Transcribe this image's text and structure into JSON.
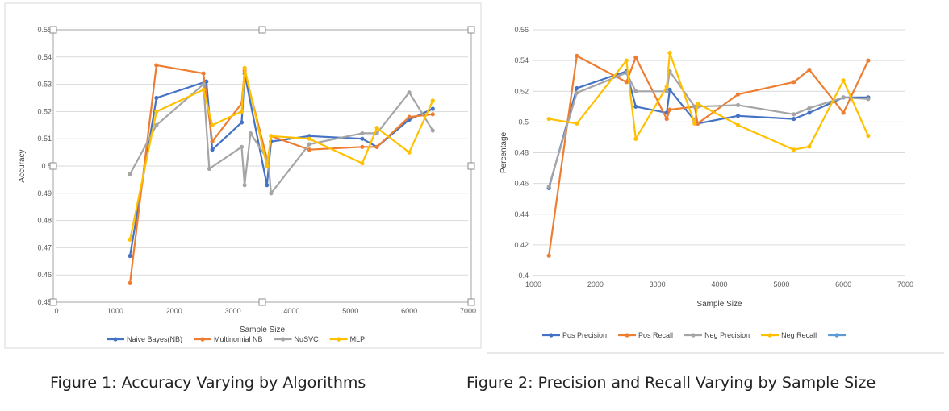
{
  "figure_captions": [
    "Figure 1: Accuracy Varying by Algorithms",
    "Figure 2: Precision and Recall Varying by Sample Size"
  ],
  "chart_data": [
    {
      "type": "line",
      "title": "",
      "xlabel": "Sample Size",
      "ylabel": "Accuracy",
      "xlim": [
        0,
        7000
      ],
      "ylim": [
        0.45,
        0.55
      ],
      "x_ticks": [
        0,
        1000,
        2000,
        3000,
        4000,
        5000,
        6000,
        7000
      ],
      "y_ticks": [
        0.45,
        0.46,
        0.47,
        0.48,
        0.49,
        0.5,
        0.51,
        0.52,
        0.53,
        0.54,
        0.55
      ],
      "y_tick_labels": [
        "0.45",
        "0.46",
        "0.47",
        "0.48",
        "0.49",
        "0.5",
        "0.51",
        "0.52",
        "0.53",
        "0.54",
        "0.55"
      ],
      "grid": "horizontal",
      "legend_position": "bottom",
      "series": [
        {
          "name": "Naive Bayes(NB)",
          "color": "#4472C4",
          "points": [
            [
              1250,
              0.467
            ],
            [
              1700,
              0.525
            ],
            [
              2550,
              0.531
            ],
            [
              2650,
              0.506
            ],
            [
              3150,
              0.516
            ],
            [
              3200,
              0.534
            ],
            [
              3580,
              0.493
            ],
            [
              3650,
              0.509
            ],
            [
              4300,
              0.511
            ],
            [
              5200,
              0.51
            ],
            [
              5450,
              0.507
            ],
            [
              6000,
              0.517
            ],
            [
              6400,
              0.521
            ]
          ]
        },
        {
          "name": "Multinomial NB",
          "color": "#ED7D31",
          "points": [
            [
              1250,
              0.457
            ],
            [
              1700,
              0.537
            ],
            [
              2500,
              0.534
            ],
            [
              2650,
              0.509
            ],
            [
              3150,
              0.523
            ],
            [
              3200,
              0.535
            ],
            [
              3600,
              0.501
            ],
            [
              3650,
              0.511
            ],
            [
              4300,
              0.506
            ],
            [
              5200,
              0.507
            ],
            [
              5450,
              0.507
            ],
            [
              6000,
              0.518
            ],
            [
              6400,
              0.519
            ]
          ]
        },
        {
          "name": "NuSVC",
          "color": "#A5A5A5",
          "points": [
            [
              1250,
              0.497
            ],
            [
              1700,
              0.515
            ],
            [
              2500,
              0.53
            ],
            [
              2600,
              0.499
            ],
            [
              3150,
              0.507
            ],
            [
              3200,
              0.493
            ],
            [
              3300,
              0.512
            ],
            [
              3600,
              0.502
            ],
            [
              3650,
              0.49
            ],
            [
              4300,
              0.508
            ],
            [
              5200,
              0.512
            ],
            [
              5450,
              0.512
            ],
            [
              6000,
              0.527
            ],
            [
              6400,
              0.513
            ]
          ]
        },
        {
          "name": "MLP",
          "color": "#FFC000",
          "points": [
            [
              1250,
              0.473
            ],
            [
              1700,
              0.52
            ],
            [
              2500,
              0.528
            ],
            [
              2650,
              0.515
            ],
            [
              3150,
              0.52
            ],
            [
              3200,
              0.536
            ],
            [
              3580,
              0.5
            ],
            [
              3650,
              0.511
            ],
            [
              4300,
              0.51
            ],
            [
              5200,
              0.501
            ],
            [
              5450,
              0.514
            ],
            [
              6000,
              0.505
            ],
            [
              6400,
              0.524
            ]
          ]
        }
      ]
    },
    {
      "type": "line",
      "title": "",
      "xlabel": "Sample Size",
      "ylabel": "Percentage",
      "xlim": [
        1000,
        7000
      ],
      "ylim": [
        0.4,
        0.56
      ],
      "x_ticks": [
        1000,
        2000,
        3000,
        4000,
        5000,
        6000,
        7000
      ],
      "y_ticks": [
        0.4,
        0.42,
        0.44,
        0.46,
        0.48,
        0.5,
        0.52,
        0.54,
        0.56
      ],
      "y_tick_labels": [
        "0.4",
        "0.42",
        "0.44",
        "0.46",
        "0.48",
        "0.5",
        "0.52",
        "0.54",
        "0.56"
      ],
      "grid": "horizontal",
      "legend_position": "bottom",
      "series": [
        {
          "name": "Pos Precision",
          "color": "#4472C4",
          "points": [
            [
              1250,
              0.457
            ],
            [
              1700,
              0.522
            ],
            [
              2500,
              0.533
            ],
            [
              2650,
              0.51
            ],
            [
              3150,
              0.506
            ],
            [
              3200,
              0.521
            ],
            [
              3600,
              0.501
            ],
            [
              3650,
              0.499
            ],
            [
              4300,
              0.504
            ],
            [
              5200,
              0.502
            ],
            [
              5450,
              0.506
            ],
            [
              6000,
              0.516
            ],
            [
              6400,
              0.516
            ]
          ]
        },
        {
          "name": "Pos Recall",
          "color": "#ED7D31",
          "points": [
            [
              1250,
              0.413
            ],
            [
              1700,
              0.543
            ],
            [
              2500,
              0.526
            ],
            [
              2650,
              0.542
            ],
            [
              3150,
              0.502
            ],
            [
              3200,
              0.508
            ],
            [
              3600,
              0.51
            ],
            [
              3650,
              0.499
            ],
            [
              4300,
              0.518
            ],
            [
              5200,
              0.526
            ],
            [
              5450,
              0.534
            ],
            [
              6000,
              0.506
            ],
            [
              6400,
              0.54
            ]
          ]
        },
        {
          "name": "Neg Precision",
          "color": "#A5A5A5",
          "points": [
            [
              1250,
              0.458
            ],
            [
              1700,
              0.519
            ],
            [
              2500,
              0.532
            ],
            [
              2650,
              0.52
            ],
            [
              3150,
              0.52
            ],
            [
              3200,
              0.533
            ],
            [
              3600,
              0.51
            ],
            [
              3650,
              0.51
            ],
            [
              4300,
              0.511
            ],
            [
              5200,
              0.505
            ],
            [
              5450,
              0.509
            ],
            [
              6000,
              0.516
            ],
            [
              6400,
              0.515
            ]
          ]
        },
        {
          "name": "Neg Recall",
          "color": "#FFC000",
          "points": [
            [
              1250,
              0.502
            ],
            [
              1700,
              0.499
            ],
            [
              2500,
              0.54
            ],
            [
              2650,
              0.489
            ],
            [
              3150,
              0.523
            ],
            [
              3200,
              0.545
            ],
            [
              3600,
              0.499
            ],
            [
              3650,
              0.512
            ],
            [
              4300,
              0.498
            ],
            [
              5200,
              0.482
            ],
            [
              5450,
              0.484
            ],
            [
              6000,
              0.527
            ],
            [
              6400,
              0.491
            ]
          ]
        },
        {
          "name": "",
          "color": "#5B9BD5",
          "points": []
        }
      ]
    }
  ]
}
